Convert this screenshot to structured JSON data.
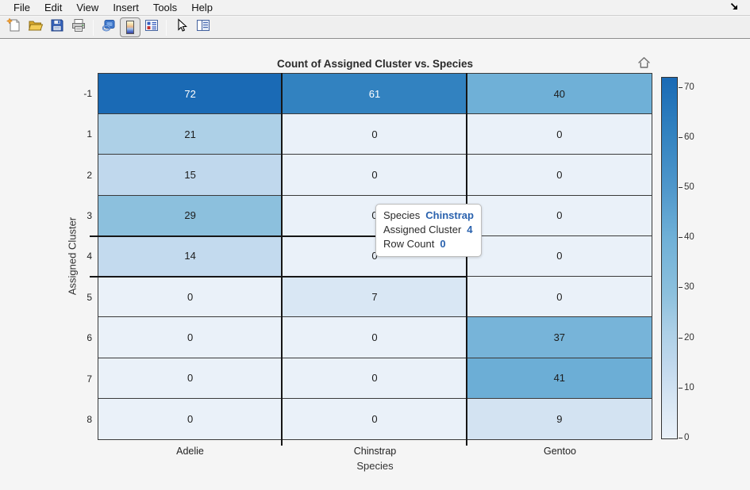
{
  "menubar": {
    "items": [
      "File",
      "Edit",
      "View",
      "Insert",
      "Tools",
      "Help"
    ],
    "overflow_icon": "arrow-down-right"
  },
  "toolbar": {
    "icons": [
      "new-document",
      "open-folder",
      "save",
      "print",
      "link",
      "colormap",
      "legend",
      "pointer",
      "side-panel"
    ],
    "active_icon": "colormap"
  },
  "figure": {
    "title": "Count of Assigned Cluster vs. Species",
    "home_icon": "home-reset"
  },
  "chart_data": {
    "type": "heatmap",
    "title": "Count of Assigned Cluster vs. Species",
    "xlabel": "Species",
    "ylabel": "Assigned Cluster",
    "columns": [
      "Adelie",
      "Chinstrap",
      "Gentoo"
    ],
    "rows": [
      "-1",
      "1",
      "2",
      "3",
      "4",
      "5",
      "6",
      "7",
      "8"
    ],
    "values": [
      [
        72,
        61,
        40
      ],
      [
        21,
        0,
        0
      ],
      [
        15,
        0,
        0
      ],
      [
        29,
        0,
        0
      ],
      [
        14,
        0,
        0
      ],
      [
        0,
        7,
        0
      ],
      [
        0,
        0,
        37
      ],
      [
        0,
        0,
        41
      ],
      [
        0,
        0,
        9
      ]
    ],
    "colorbar": {
      "ticks": [
        0,
        10,
        20,
        30,
        40,
        50,
        60,
        70
      ],
      "vmin": 0,
      "vmax": 72,
      "position": "right"
    },
    "colormap_stops": [
      [
        0,
        "#eaf1f9"
      ],
      [
        7,
        "#d9e7f4"
      ],
      [
        15,
        "#c0d8ed"
      ],
      [
        21,
        "#add0e7"
      ],
      [
        29,
        "#8cc0dd"
      ],
      [
        40,
        "#6fb0d7"
      ],
      [
        50,
        "#4f97cb"
      ],
      [
        61,
        "#3282c0"
      ],
      [
        72,
        "#1a6ab5"
      ]
    ],
    "dark_text_color": "#1c1c1c",
    "light_text_color": "#ffffff",
    "hover": {
      "column": "Chinstrap",
      "row": "4"
    },
    "grid": true,
    "legend_position": "none"
  },
  "tooltip": {
    "rows": [
      {
        "label": "Species",
        "value": "Chinstrap"
      },
      {
        "label": "Assigned Cluster",
        "value": "4"
      },
      {
        "label": "Row Count",
        "value": "0"
      }
    ],
    "value_color": "#2a62ae"
  }
}
